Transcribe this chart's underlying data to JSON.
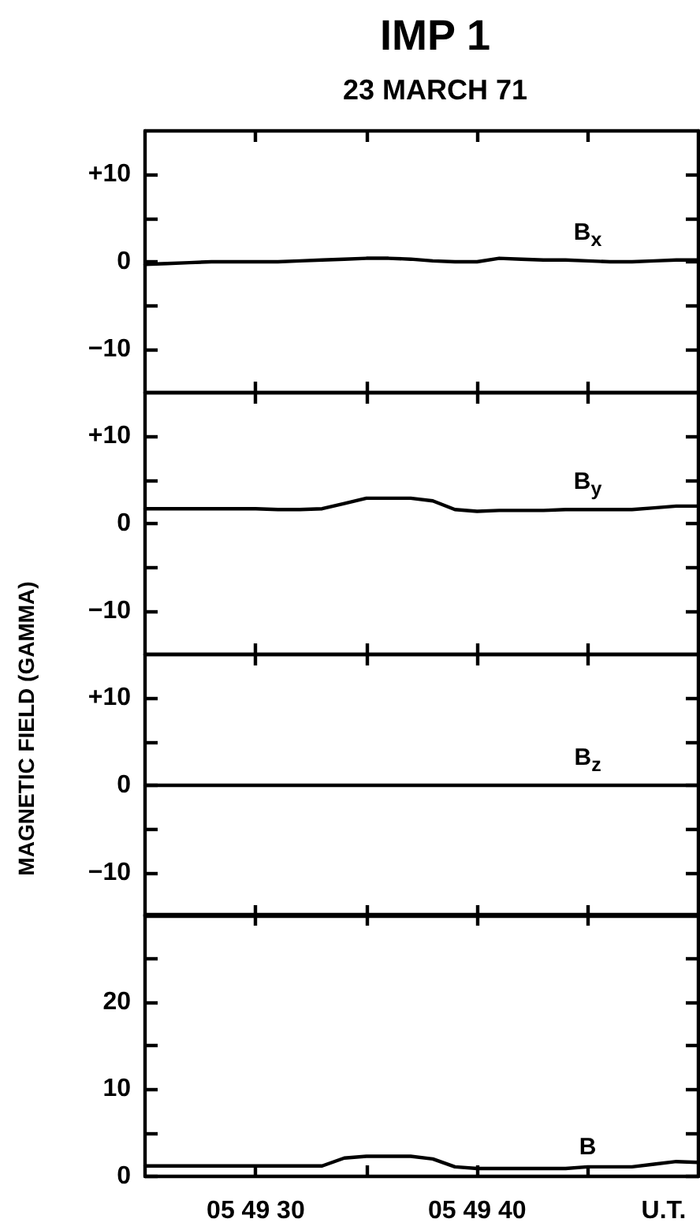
{
  "chart_data": [
    {
      "type": "line",
      "title": "IMP 1",
      "subtitle": "23 MARCH 71",
      "categories": [
        null,
        null,
        null,
        null,
        null,
        null,
        null,
        null,
        null,
        null,
        null,
        null,
        null,
        null,
        null,
        null,
        null,
        null,
        null,
        null,
        null,
        null,
        null,
        null,
        null,
        null
      ],
      "series": [
        {
          "name": "B$_{x}$",
          "color": "#000000",
          "values": [
            -0.3,
            -0.2,
            -0.1,
            0,
            0,
            0,
            0,
            0.1,
            0.2,
            0.3,
            0.4,
            0.4,
            0.3,
            0.1,
            0,
            0,
            0.4,
            0.3,
            0.2,
            0.2,
            0.1,
            0,
            0,
            0.1,
            0.2,
            0.2
          ]
        }
      ],
      "ylim": [
        -15,
        15
      ],
      "yticks": [
        {
          "value": -10,
          "label": "−10"
        },
        {
          "value": -5,
          "label": null
        },
        0,
        {
          "value": 5,
          "label": null
        },
        {
          "value": 10,
          "label": "+10"
        }
      ]
    },
    {
      "type": "line",
      "categories": [
        null,
        null,
        null,
        null,
        null,
        null,
        null,
        null,
        null,
        null,
        null,
        null,
        null,
        null,
        null,
        null,
        null,
        null,
        null,
        null,
        null,
        null,
        null,
        null,
        null,
        null
      ],
      "series": [
        {
          "name": "B$_{y}$",
          "color": "#000000",
          "values": [
            1.7,
            1.7,
            1.7,
            1.7,
            1.7,
            1.7,
            1.6,
            1.6,
            1.7,
            2.3,
            2.9,
            2.9,
            2.9,
            2.6,
            1.6,
            1.4,
            1.5,
            1.5,
            1.5,
            1.6,
            1.6,
            1.6,
            1.6,
            1.8,
            2.0,
            2.0
          ]
        }
      ],
      "ylim": [
        -15,
        15
      ],
      "yticks": [
        {
          "value": -10,
          "label": "−10"
        },
        {
          "value": -5,
          "label": null
        },
        0,
        {
          "value": 5,
          "label": null
        },
        {
          "value": 10,
          "label": "+10"
        }
      ]
    },
    {
      "type": "line",
      "ylabel": "MAGNETIC FIELD (GAMMA)",
      "categories": [
        null,
        null,
        null,
        null,
        null,
        null,
        null,
        null,
        null,
        null,
        null,
        null,
        null,
        null,
        null,
        null,
        null,
        null,
        null,
        null,
        null,
        null,
        null,
        null,
        null,
        null
      ],
      "series": [
        {
          "name": "B$_{z}$",
          "color": "#000000",
          "values": [
            0,
            0,
            0,
            0,
            0,
            0,
            0,
            0,
            0,
            0,
            0,
            0,
            0,
            0,
            0,
            0,
            0,
            0,
            0,
            0,
            0,
            0,
            0,
            0,
            0,
            0
          ]
        }
      ],
      "ylim": [
        -15,
        15
      ],
      "yticks": [
        {
          "value": -10,
          "label": "−10"
        },
        {
          "value": -5,
          "label": null
        },
        0,
        {
          "value": 5,
          "label": null
        },
        {
          "value": 10,
          "label": "+10"
        }
      ]
    },
    {
      "type": "line",
      "xlabel": "U.T.",
      "categories": [
        null,
        null,
        null,
        null,
        null,
        "05 49 30",
        null,
        null,
        null,
        null,
        null,
        null,
        null,
        null,
        null,
        "05 49 40",
        null,
        null,
        null,
        null,
        null,
        null,
        null,
        null,
        null,
        null
      ],
      "series": [
        {
          "name": "B",
          "color": "#000000",
          "values": [
            1.2,
            1.2,
            1.2,
            1.2,
            1.2,
            1.2,
            1.2,
            1.2,
            1.2,
            2.1,
            2.3,
            2.3,
            2.3,
            2.0,
            1.1,
            0.9,
            0.9,
            0.9,
            0.9,
            0.9,
            1.1,
            1.1,
            1.1,
            1.4,
            1.7,
            1.6
          ]
        }
      ],
      "ylim": [
        0,
        30
      ],
      "yticks": [
        0,
        {
          "value": 5,
          "label": null
        },
        10,
        {
          "value": 15,
          "label": null
        },
        20,
        {
          "value": 25,
          "label": null
        }
      ]
    }
  ]
}
